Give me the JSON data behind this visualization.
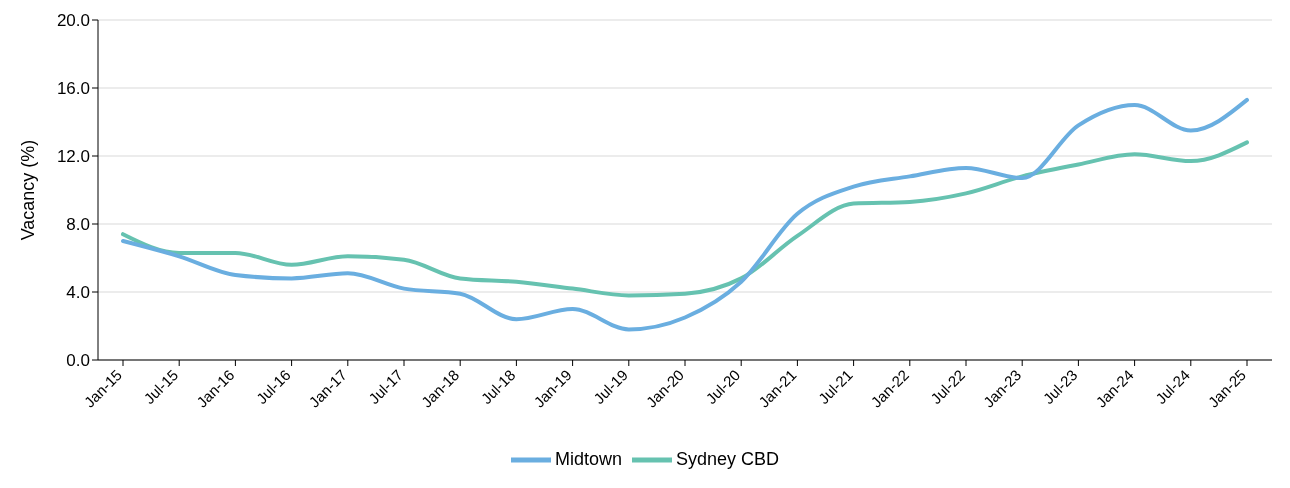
{
  "chart_data": {
    "type": "line",
    "ylabel": "Vacancy (%)",
    "categories": [
      "Jan-15",
      "Jul-15",
      "Jan-16",
      "Jul-16",
      "Jan-17",
      "Jul-17",
      "Jan-18",
      "Jul-18",
      "Jan-19",
      "Jul-19",
      "Jan-20",
      "Jul-20",
      "Jan-21",
      "Jul-21",
      "Jan-22",
      "Jul-22",
      "Jan-23",
      "Jul-23",
      "Jan-24",
      "Jul-24",
      "Jan-25"
    ],
    "series": [
      {
        "name": "Sydney CBD",
        "color": "#66c2b0",
        "values": [
          7.4,
          6.3,
          6.3,
          5.6,
          6.1,
          5.9,
          4.8,
          4.6,
          4.2,
          3.8,
          3.9,
          4.8,
          7.3,
          9.2,
          9.3,
          9.8,
          10.8,
          11.5,
          12.1,
          11.7,
          12.8
        ]
      },
      {
        "name": "Midtown",
        "color": "#6aaee0",
        "values": [
          7.0,
          6.1,
          5.0,
          4.8,
          5.1,
          4.2,
          3.9,
          2.4,
          3.0,
          1.8,
          2.5,
          4.6,
          8.6,
          10.2,
          10.8,
          11.3,
          10.7,
          13.8,
          15.0,
          13.5,
          15.3
        ]
      }
    ],
    "ylim": [
      0,
      20
    ],
    "yticks": [
      {
        "value": 0,
        "label": "0.0"
      },
      {
        "value": 4,
        "label": "4.0"
      },
      {
        "value": 8,
        "label": "8.0"
      },
      {
        "value": 12,
        "label": "12.0"
      },
      {
        "value": 16,
        "label": "16.0"
      },
      {
        "value": 20,
        "label": "20.0"
      }
    ],
    "grid": "y",
    "legend": "bottom",
    "marker": "none",
    "line_style": "solid"
  }
}
